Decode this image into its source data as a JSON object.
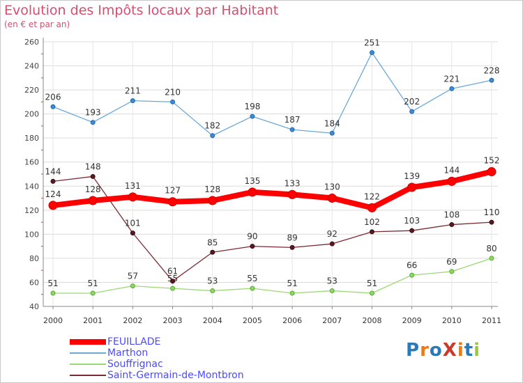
{
  "chart_data": {
    "type": "line",
    "title": "Evolution des Impôts locaux par Habitant",
    "subtitle": "(en € et par an)",
    "xlabel": "",
    "ylabel": "",
    "categories": [
      "2000",
      "2001",
      "2002",
      "2003",
      "2004",
      "2005",
      "2006",
      "2007",
      "2008",
      "2009",
      "2010",
      "2011"
    ],
    "ylim": [
      40,
      260
    ],
    "yticks": [
      40,
      60,
      80,
      100,
      120,
      140,
      160,
      180,
      200,
      220,
      240,
      260
    ],
    "grid": true,
    "legend_position": "bottom-left",
    "series": [
      {
        "name": "FEUILLADE",
        "color": "#ff0000",
        "values": [
          124,
          128,
          131,
          127,
          128,
          135,
          133,
          130,
          122,
          139,
          144,
          152
        ]
      },
      {
        "name": "Marthon",
        "color": "#6aa8d8",
        "values": [
          206,
          193,
          211,
          210,
          182,
          198,
          187,
          184,
          251,
          202,
          221,
          228
        ]
      },
      {
        "name": "Souffrignac",
        "color": "#9ad873",
        "values": [
          51,
          51,
          57,
          55,
          53,
          55,
          51,
          53,
          51,
          66,
          69,
          80
        ]
      },
      {
        "name": "Saint-Germain-de-Montbron",
        "color": "#7a2a32",
        "values": [
          144,
          148,
          101,
          61,
          85,
          90,
          89,
          92,
          102,
          103,
          108,
          110
        ]
      }
    ]
  },
  "logo": {
    "text": "ProXiti",
    "colors": [
      "#2a7ab8",
      "#e87a1a",
      "#2a7ab8",
      "#c83a2a",
      "#e87a1a",
      "#2a7ab8",
      "#9ac83a"
    ]
  }
}
